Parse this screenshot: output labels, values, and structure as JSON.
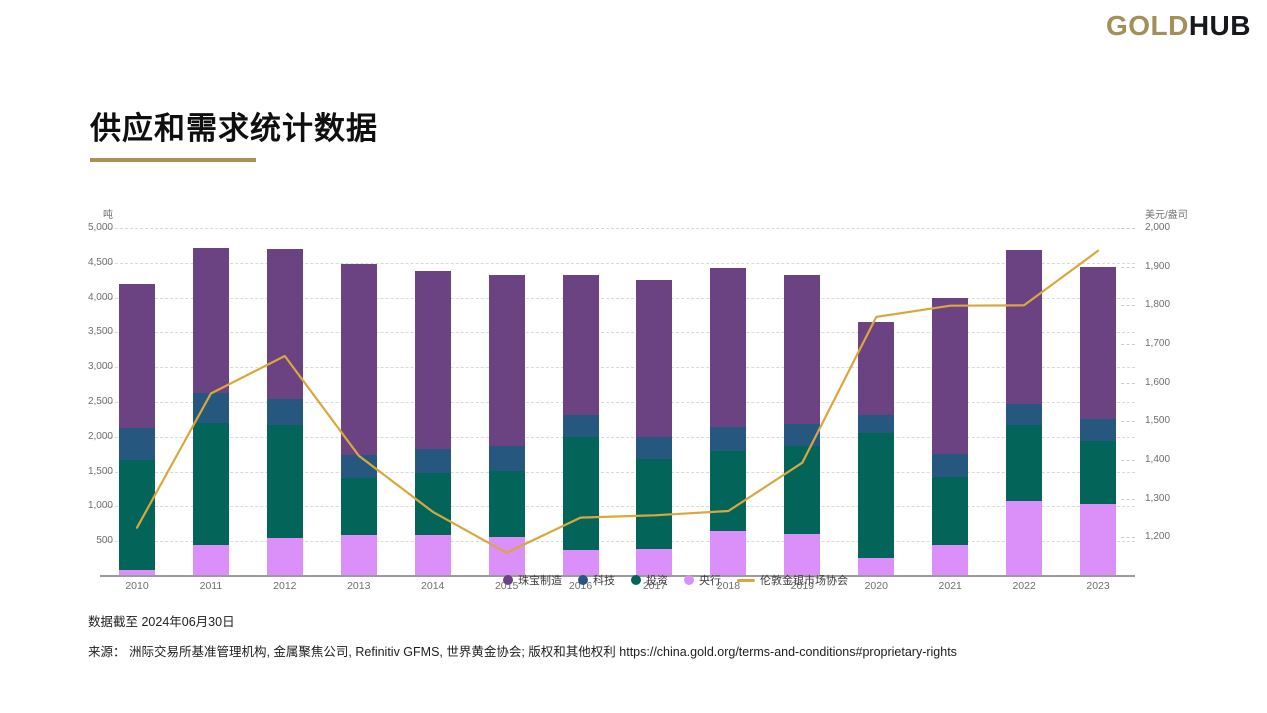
{
  "logo": {
    "gold": "GOLD",
    "hub": "HUB"
  },
  "page": {
    "title": "供应和需求统计数据"
  },
  "footer": {
    "as_of": "数据截至 2024年06月30日",
    "source": "来源：  洲际交易所基准管理机构, 金属聚焦公司, Refinitiv GFMS, 世界黄金协会; 版权和其他权利 https://china.gold.org/terms-and-conditions#proprietary-rights"
  },
  "chart_data": {
    "type": "bar",
    "subtype": "stacked bars with line overlay on secondary axis",
    "categories": [
      "2010",
      "2011",
      "2012",
      "2013",
      "2014",
      "2015",
      "2016",
      "2017",
      "2018",
      "2019",
      "2020",
      "2021",
      "2022",
      "2023"
    ],
    "series": [
      {
        "name": "央行",
        "color": "#DB8FF8",
        "values": [
          80,
          450,
          545,
          590,
          585,
          565,
          375,
          385,
          640,
          600,
          255,
          450,
          1080,
          1030
        ]
      },
      {
        "name": "投资",
        "color": "#03645A",
        "values": [
          1590,
          1750,
          1620,
          820,
          895,
          950,
          1620,
          1295,
          1160,
          1265,
          1800,
          970,
          1085,
          905
        ]
      },
      {
        "name": "科技",
        "color": "#26587F",
        "values": [
          460,
          430,
          385,
          335,
          350,
          350,
          315,
          320,
          340,
          320,
          265,
          335,
          310,
          315
        ]
      },
      {
        "name": "珠宝制造",
        "color": "#6B4282",
        "values": [
          2070,
          2090,
          2150,
          2735,
          2550,
          2465,
          2020,
          2255,
          2280,
          2145,
          1330,
          2235,
          2205,
          2185
        ]
      }
    ],
    "line_series": {
      "name": "伦敦金银市场协会",
      "color": "#D9A73E",
      "axis": "right",
      "values": [
        1225,
        1572,
        1669,
        1411,
        1266,
        1160,
        1251,
        1257,
        1268,
        1393,
        1770,
        1799,
        1800,
        1941
      ]
    },
    "legend": [
      {
        "label": "珠宝制造",
        "color": "#6B4282",
        "marker": "dot"
      },
      {
        "label": "科技",
        "color": "#26587F",
        "marker": "dot"
      },
      {
        "label": "投资",
        "color": "#03645A",
        "marker": "dot"
      },
      {
        "label": "央行",
        "color": "#DB8FF8",
        "marker": "dot"
      },
      {
        "label": "伦敦金银市场协会",
        "color": "#D9A73E",
        "marker": "line"
      }
    ],
    "left_axis": {
      "unit": "吨",
      "min": 0,
      "max": 5000,
      "ticks": [
        500,
        1000,
        1500,
        2000,
        2500,
        3000,
        3500,
        4000,
        4500,
        5000
      ]
    },
    "right_axis": {
      "unit": "美元/盎司",
      "min": 1100,
      "max": 2000,
      "ticks": [
        1200,
        1300,
        1400,
        1500,
        1600,
        1700,
        1800,
        1900,
        2000
      ]
    },
    "grid": "dashed horizontal",
    "legend_position": "bottom-center overlapping x-axis labels"
  }
}
